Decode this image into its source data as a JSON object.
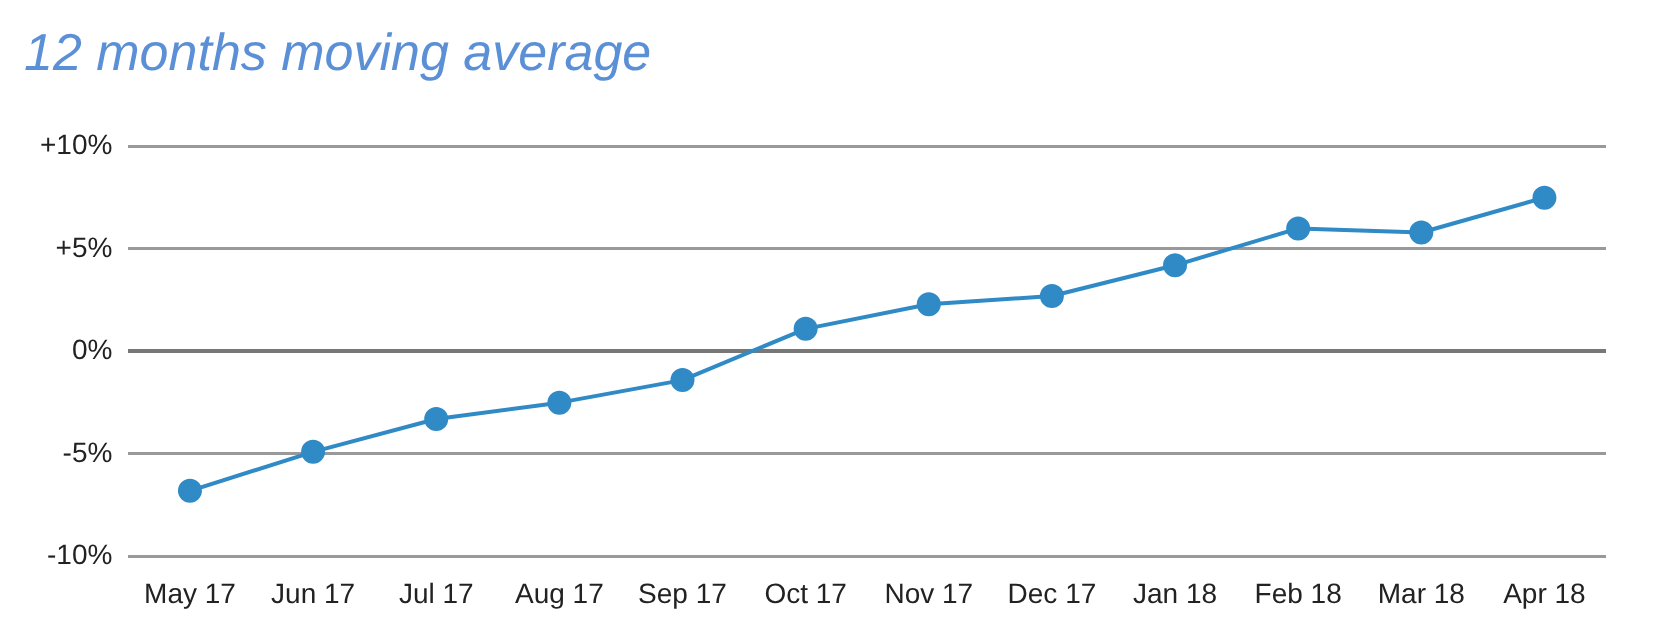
{
  "chart_data": {
    "type": "line",
    "title": "12 months moving average",
    "categories": [
      "May 17",
      "Jun 17",
      "Jul 17",
      "Aug 17",
      "Sep 17",
      "Oct 17",
      "Nov 17",
      "Dec 17",
      "Jan 18",
      "Feb 18",
      "Mar 18",
      "Apr 18"
    ],
    "series": [
      {
        "color": "#2f8ac6",
        "values": [
          -6.8,
          -4.9,
          -3.3,
          -2.5,
          -1.4,
          1.1,
          2.3,
          2.7,
          4.2,
          6.0,
          5.8,
          7.5
        ]
      }
    ],
    "ylim": [
      -10,
      10
    ],
    "yticks": [
      {
        "value": -10,
        "label": "-10%"
      },
      {
        "value": -5,
        "label": "-5%"
      },
      {
        "value": 0,
        "label": "0%"
      },
      {
        "value": 5,
        "label": "+5%"
      },
      {
        "value": 10,
        "label": "+10%"
      }
    ],
    "grid": "y",
    "marker": "circle",
    "line_style": "solid",
    "legend": false
  }
}
